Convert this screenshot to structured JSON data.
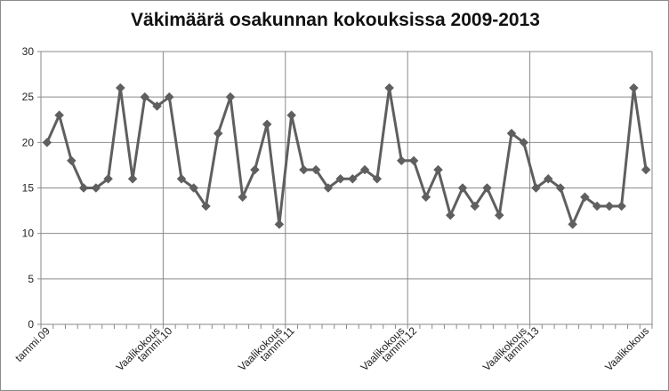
{
  "chart_data": {
    "type": "line",
    "title": "Väkimäärä osakunnan kokouksissa 2009-2013",
    "xlabel": "",
    "ylabel": "",
    "ylim": [
      0,
      30
    ],
    "yticks": [
      0,
      5,
      10,
      15,
      20,
      25,
      30
    ],
    "grid": {
      "horizontal": true,
      "vertical": true
    },
    "legend": "none",
    "series_color": "#5f5f5f",
    "marker": "diamond",
    "x_labels": [
      {
        "index": 0,
        "label": "tammi.09"
      },
      {
        "index": 9,
        "label": "Vaalikokous"
      },
      {
        "index": 10,
        "label": "tammi.10"
      },
      {
        "index": 19,
        "label": "Vaalikokous"
      },
      {
        "index": 20,
        "label": "tammi.11"
      },
      {
        "index": 29,
        "label": "Vaalikokous"
      },
      {
        "index": 30,
        "label": "tammi.12"
      },
      {
        "index": 39,
        "label": "Vaalikokous"
      },
      {
        "index": 40,
        "label": "tammi.13"
      },
      {
        "index": 49,
        "label": "Vaalikokous"
      }
    ],
    "vertical_gridline_indices": [
      10,
      20,
      30,
      40
    ],
    "series": [
      {
        "values": [
          20,
          23,
          18,
          15,
          15,
          16,
          26,
          16,
          25,
          24,
          25,
          16,
          15,
          13,
          21,
          25,
          14,
          17,
          22,
          11,
          23,
          17,
          17,
          15,
          16,
          16,
          17,
          16,
          26,
          18,
          18,
          14,
          17,
          12,
          15,
          13,
          15,
          12,
          21,
          20,
          15,
          16,
          15,
          11,
          14,
          13,
          13,
          13,
          26,
          17
        ]
      }
    ]
  }
}
